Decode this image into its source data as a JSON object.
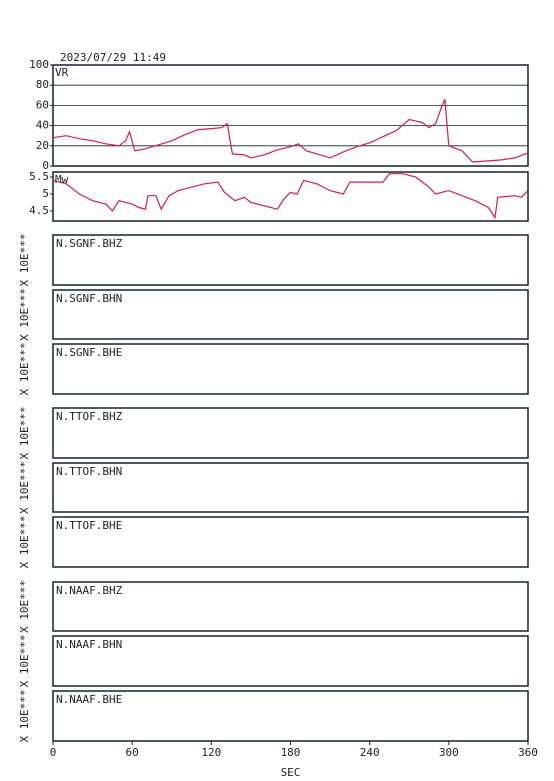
{
  "chart_data": [
    {
      "type": "line",
      "title": "2023/07/29 11:49",
      "x": [
        0,
        10,
        20,
        30,
        40,
        50,
        55,
        58,
        62,
        70,
        80,
        90,
        100,
        110,
        120,
        128,
        132,
        136,
        145,
        150,
        160,
        170,
        180,
        186,
        192,
        200,
        210,
        220,
        230,
        240,
        250,
        260,
        270,
        280,
        285,
        290,
        295,
        297,
        300,
        310,
        318,
        330,
        340,
        350,
        360
      ],
      "series": [
        {
          "name": "VR",
          "color": "#d81b4a",
          "values": [
            28,
            30,
            27,
            25,
            22,
            20,
            25,
            34,
            15,
            17,
            21,
            25,
            31,
            36,
            37,
            38,
            42,
            12,
            11,
            8,
            11,
            16,
            19,
            22,
            15,
            12,
            8,
            14,
            19,
            23,
            29,
            35,
            46,
            43,
            38,
            42,
            60,
            66,
            20,
            15,
            4,
            5,
            6,
            8,
            13
          ]
        }
      ],
      "xlim": [
        0,
        360
      ],
      "ylim": [
        0,
        100
      ],
      "yticks": [
        0,
        20,
        40,
        60,
        80,
        100
      ],
      "grid": true
    },
    {
      "type": "line",
      "x": [
        0,
        10,
        20,
        30,
        40,
        45,
        50,
        60,
        65,
        70,
        72,
        78,
        82,
        88,
        95,
        105,
        115,
        125,
        130,
        138,
        145,
        150,
        160,
        170,
        175,
        180,
        185,
        190,
        200,
        210,
        220,
        225,
        240,
        250,
        255,
        265,
        275,
        285,
        290,
        300,
        310,
        320,
        330,
        335,
        337,
        350,
        355,
        360
      ],
      "series": [
        {
          "name": "Mw",
          "color": "#d81b4a",
          "values": [
            5.4,
            5.3,
            5.0,
            4.8,
            4.7,
            4.5,
            4.8,
            4.7,
            4.6,
            4.55,
            4.95,
            4.95,
            4.55,
            4.95,
            5.1,
            5.2,
            5.3,
            5.35,
            5.05,
            4.8,
            4.9,
            4.75,
            4.65,
            4.55,
            4.85,
            5.05,
            5.0,
            5.4,
            5.3,
            5.1,
            5.0,
            5.35,
            5.35,
            5.35,
            5.6,
            5.6,
            5.5,
            5.2,
            5.0,
            5.1,
            4.95,
            4.8,
            4.6,
            4.3,
            4.9,
            4.95,
            4.9,
            5.1
          ]
        }
      ],
      "xlim": [
        0,
        360
      ],
      "ylim": [
        4.2,
        5.65
      ],
      "yticks": [
        4.5,
        5.0,
        5.5
      ],
      "grid": false
    },
    {
      "type": "empty",
      "title": "N.SGNF.BHZ",
      "ylabel": "X 10E***"
    },
    {
      "type": "empty",
      "title": "N.SGNF.BHN",
      "ylabel": "X 10E***"
    },
    {
      "type": "empty",
      "title": "N.SGNF.BHE",
      "ylabel": "X 10E***"
    },
    {
      "type": "empty",
      "title": "N.TTOF.BHZ",
      "ylabel": "X 10E***"
    },
    {
      "type": "empty",
      "title": "N.TTOF.BHN",
      "ylabel": "X 10E***"
    },
    {
      "type": "empty",
      "title": "N.TTOF.BHE",
      "ylabel": "X 10E***"
    },
    {
      "type": "empty",
      "title": "N.NAAF.BHZ",
      "ylabel": "X 10E***"
    },
    {
      "type": "empty",
      "title": "N.NAAF.BHN",
      "ylabel": "X 10E***"
    },
    {
      "type": "empty",
      "title": "N.NAAF.BHE",
      "ylabel": "X 10E***",
      "xlim": [
        0,
        360
      ],
      "xticks": [
        0,
        60,
        120,
        180,
        240,
        300,
        360
      ],
      "xlabel": "SEC"
    }
  ]
}
